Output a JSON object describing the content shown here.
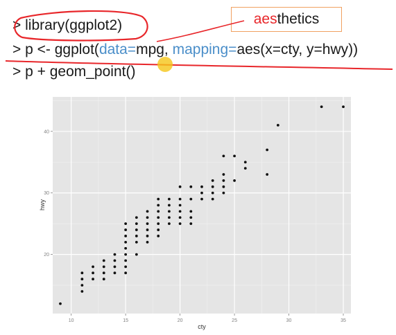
{
  "code": {
    "line1": {
      "prompt": ">",
      "text": "library(ggplot2)"
    },
    "line2": {
      "prompt": ">",
      "pre": "p <- ggplot(",
      "arg1_name": "data=",
      "arg1_value": "mpg, ",
      "arg2_name": "mapping=",
      "arg2_value": "aes(x=cty, y=hwy))"
    },
    "line3": {
      "prompt": ">",
      "text": "p + geom_point()"
    }
  },
  "callout": {
    "highlight": "aes",
    "rest": "thetics"
  },
  "colors": {
    "annotation_red": "#e8262a",
    "argument_blue": "#4a8ec9",
    "callout_border": "#f0a060",
    "cursor_yellow": "#f5c518",
    "plot_panel": "#e5e5e5",
    "point": "#111111"
  },
  "chart_data": {
    "type": "scatter",
    "xlabel": "cty",
    "ylabel": "hwy",
    "xlim": [
      8.3,
      35.7
    ],
    "ylim": [
      10.4,
      45.6
    ],
    "x_ticks": [
      10,
      15,
      20,
      25,
      30,
      35
    ],
    "y_ticks": [
      20,
      30,
      40
    ],
    "grid": true,
    "points": [
      [
        9,
        12
      ],
      [
        11,
        14
      ],
      [
        11,
        15
      ],
      [
        11,
        16
      ],
      [
        11,
        17
      ],
      [
        12,
        16
      ],
      [
        12,
        17
      ],
      [
        12,
        18
      ],
      [
        13,
        16
      ],
      [
        13,
        17
      ],
      [
        13,
        18
      ],
      [
        13,
        19
      ],
      [
        14,
        17
      ],
      [
        14,
        18
      ],
      [
        14,
        19
      ],
      [
        14,
        20
      ],
      [
        15,
        17
      ],
      [
        15,
        18
      ],
      [
        15,
        19
      ],
      [
        15,
        20
      ],
      [
        15,
        21
      ],
      [
        15,
        22
      ],
      [
        15,
        23
      ],
      [
        15,
        24
      ],
      [
        15,
        25
      ],
      [
        16,
        20
      ],
      [
        16,
        22
      ],
      [
        16,
        23
      ],
      [
        16,
        24
      ],
      [
        16,
        25
      ],
      [
        16,
        26
      ],
      [
        17,
        22
      ],
      [
        17,
        23
      ],
      [
        17,
        24
      ],
      [
        17,
        25
      ],
      [
        17,
        26
      ],
      [
        17,
        27
      ],
      [
        18,
        23
      ],
      [
        18,
        24
      ],
      [
        18,
        25
      ],
      [
        18,
        26
      ],
      [
        18,
        27
      ],
      [
        18,
        28
      ],
      [
        18,
        29
      ],
      [
        19,
        25
      ],
      [
        19,
        26
      ],
      [
        19,
        27
      ],
      [
        19,
        28
      ],
      [
        19,
        29
      ],
      [
        20,
        25
      ],
      [
        20,
        26
      ],
      [
        20,
        27
      ],
      [
        20,
        28
      ],
      [
        20,
        29
      ],
      [
        20,
        31
      ],
      [
        21,
        25
      ],
      [
        21,
        26
      ],
      [
        21,
        27
      ],
      [
        21,
        29
      ],
      [
        21,
        31
      ],
      [
        22,
        29
      ],
      [
        22,
        30
      ],
      [
        22,
        31
      ],
      [
        23,
        29
      ],
      [
        23,
        30
      ],
      [
        23,
        31
      ],
      [
        23,
        32
      ],
      [
        24,
        30
      ],
      [
        24,
        31
      ],
      [
        24,
        32
      ],
      [
        24,
        33
      ],
      [
        24,
        36
      ],
      [
        25,
        32
      ],
      [
        25,
        36
      ],
      [
        26,
        34
      ],
      [
        26,
        35
      ],
      [
        28,
        33
      ],
      [
        28,
        37
      ],
      [
        29,
        41
      ],
      [
        33,
        44
      ],
      [
        35,
        44
      ]
    ]
  }
}
